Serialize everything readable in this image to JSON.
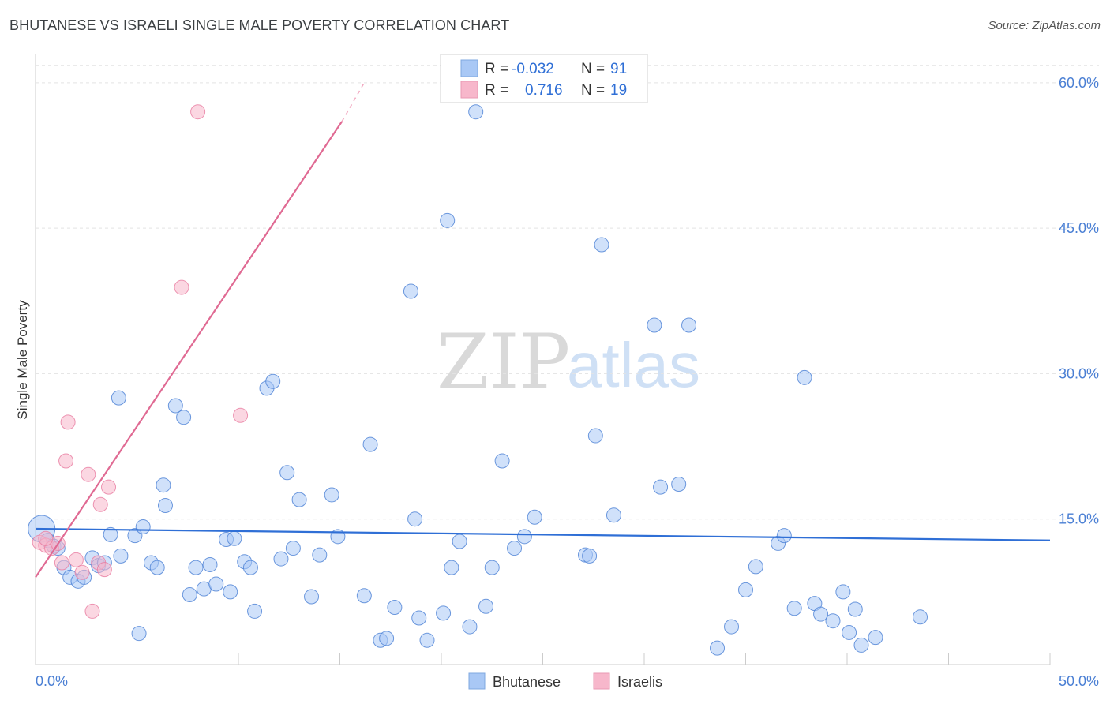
{
  "header": {
    "title": "BHUTANESE VS ISRAELI SINGLE MALE POVERTY CORRELATION CHART",
    "source": "Source: ZipAtlas.com"
  },
  "watermark": {
    "zip": "ZIP",
    "atlas": "atlas"
  },
  "legend": {
    "rows": [
      {
        "r_label": "R =",
        "r_value": "-0.032",
        "n_label": "N =",
        "n_value": "91",
        "color": "#a9c8f5"
      },
      {
        "r_label": "R =",
        "r_value": "0.716",
        "n_label": "N =",
        "n_value": "19",
        "color": "#f7b7cb"
      }
    ]
  },
  "bottom_legend": [
    {
      "label": "Bhutanese",
      "color": "#a9c8f5"
    },
    {
      "label": "Israelis",
      "color": "#f7b7cb"
    }
  ],
  "chart_data": {
    "type": "scatter",
    "xlabel": "",
    "ylabel": "Single Male Poverty",
    "xlim": [
      0,
      50
    ],
    "ylim": [
      0,
      63
    ],
    "x_tick_labels": [
      "0.0%",
      "50.0%"
    ],
    "y_ticks": [
      15,
      30,
      45,
      60
    ],
    "y_tick_labels": [
      "15.0%",
      "30.0%",
      "45.0%",
      "60.0%"
    ],
    "grid": "horizontal dashed",
    "series": [
      {
        "name": "Bhutanese",
        "color": "#4a7fd4",
        "fill": "#a9c8f5",
        "trend": {
          "x0": 0,
          "y0": 14.0,
          "x1": 50,
          "y1": 12.8
        },
        "points": [
          [
            0.3,
            14.0
          ],
          [
            0.6,
            12.8
          ],
          [
            0.9,
            12.2
          ],
          [
            1.1,
            12.0
          ],
          [
            1.4,
            10.0
          ],
          [
            1.7,
            9.0
          ],
          [
            2.1,
            8.6
          ],
          [
            2.4,
            9.0
          ],
          [
            2.8,
            11.0
          ],
          [
            3.1,
            10.2
          ],
          [
            3.4,
            10.5
          ],
          [
            3.7,
            13.4
          ],
          [
            4.2,
            11.2
          ],
          [
            4.1,
            27.5
          ],
          [
            4.9,
            13.3
          ],
          [
            5.1,
            3.2
          ],
          [
            5.3,
            14.2
          ],
          [
            5.7,
            10.5
          ],
          [
            6.0,
            10.0
          ],
          [
            6.3,
            18.5
          ],
          [
            6.4,
            16.4
          ],
          [
            6.9,
            26.7
          ],
          [
            7.3,
            25.5
          ],
          [
            7.6,
            7.2
          ],
          [
            7.9,
            10.0
          ],
          [
            8.3,
            7.8
          ],
          [
            8.6,
            10.3
          ],
          [
            8.9,
            8.3
          ],
          [
            9.4,
            12.9
          ],
          [
            9.6,
            7.5
          ],
          [
            9.8,
            13.0
          ],
          [
            10.3,
            10.6
          ],
          [
            10.6,
            10.0
          ],
          [
            10.8,
            5.5
          ],
          [
            11.4,
            28.5
          ],
          [
            11.7,
            29.2
          ],
          [
            12.1,
            10.9
          ],
          [
            12.4,
            19.8
          ],
          [
            12.7,
            12.0
          ],
          [
            13.0,
            17.0
          ],
          [
            13.6,
            7.0
          ],
          [
            14.0,
            11.3
          ],
          [
            14.6,
            17.5
          ],
          [
            14.9,
            13.2
          ],
          [
            16.2,
            7.1
          ],
          [
            16.5,
            22.7
          ],
          [
            17.0,
            2.5
          ],
          [
            17.3,
            2.7
          ],
          [
            17.7,
            5.9
          ],
          [
            18.5,
            38.5
          ],
          [
            18.7,
            15.0
          ],
          [
            18.9,
            4.8
          ],
          [
            19.3,
            2.5
          ],
          [
            20.1,
            5.3
          ],
          [
            20.3,
            45.8
          ],
          [
            20.5,
            10.0
          ],
          [
            20.9,
            12.7
          ],
          [
            21.4,
            3.9
          ],
          [
            21.7,
            57.0
          ],
          [
            22.2,
            6.0
          ],
          [
            22.5,
            10.0
          ],
          [
            23.0,
            21.0
          ],
          [
            23.6,
            12.0
          ],
          [
            24.1,
            13.2
          ],
          [
            24.6,
            15.2
          ],
          [
            27.1,
            11.3
          ],
          [
            27.3,
            11.2
          ],
          [
            27.6,
            23.6
          ],
          [
            27.9,
            43.3
          ],
          [
            28.5,
            15.4
          ],
          [
            30.5,
            35.0
          ],
          [
            30.8,
            18.3
          ],
          [
            31.7,
            18.6
          ],
          [
            32.2,
            35.0
          ],
          [
            33.6,
            1.7
          ],
          [
            34.3,
            3.9
          ],
          [
            35.0,
            7.7
          ],
          [
            35.5,
            10.1
          ],
          [
            36.6,
            12.5
          ],
          [
            36.9,
            13.3
          ],
          [
            37.4,
            5.8
          ],
          [
            37.9,
            29.6
          ],
          [
            38.4,
            6.3
          ],
          [
            38.7,
            5.2
          ],
          [
            39.3,
            4.5
          ],
          [
            39.8,
            7.5
          ],
          [
            40.1,
            3.3
          ],
          [
            40.4,
            5.7
          ],
          [
            40.7,
            2.0
          ],
          [
            41.4,
            2.8
          ],
          [
            43.6,
            4.9
          ]
        ]
      },
      {
        "name": "Israelis",
        "color": "#e87ca0",
        "fill": "#f7b7cb",
        "trend": {
          "x0": 0,
          "y0": 9.0,
          "x1": 15.1,
          "y1": 56.0,
          "dash_x1": 16.2,
          "dash_y1": 60.0
        },
        "points": [
          [
            0.2,
            12.6
          ],
          [
            0.5,
            12.3
          ],
          [
            0.8,
            12.0
          ],
          [
            1.1,
            12.5
          ],
          [
            1.3,
            10.5
          ],
          [
            1.6,
            25.0
          ],
          [
            1.5,
            21.0
          ],
          [
            2.0,
            10.8
          ],
          [
            2.3,
            9.5
          ],
          [
            2.6,
            19.6
          ],
          [
            2.8,
            5.5
          ],
          [
            3.1,
            10.5
          ],
          [
            3.2,
            16.5
          ],
          [
            3.4,
            9.8
          ],
          [
            3.6,
            18.3
          ],
          [
            7.2,
            38.9
          ],
          [
            8.0,
            57.0
          ],
          [
            10.1,
            25.7
          ],
          [
            0.5,
            13.0
          ]
        ]
      }
    ]
  }
}
